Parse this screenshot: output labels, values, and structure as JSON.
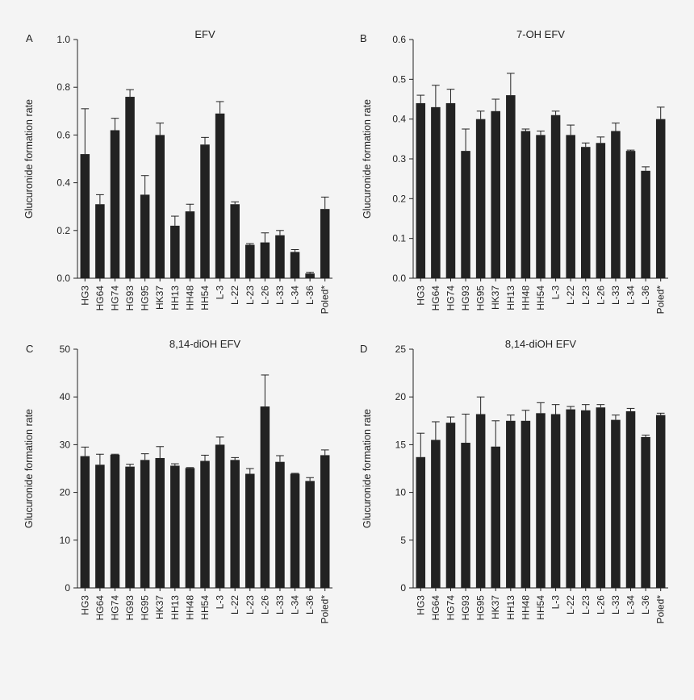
{
  "figure": {
    "background": "#f4f4f4",
    "bar_color": "#222222"
  },
  "chart_data": [
    {
      "type": "bar",
      "letter": "A",
      "title": "EFV",
      "ylabel": "Glucuronide formation rate",
      "ylim": [
        0,
        1.0
      ],
      "yticks": [
        "0.0",
        "0.2",
        "0.4",
        "0.6",
        "0.8",
        "1.0"
      ],
      "categories": [
        "HG3",
        "HG64",
        "HG74",
        "HG93",
        "HG95",
        "HK37",
        "HH13",
        "HH48",
        "HH54",
        "L-3",
        "L-22",
        "L-23",
        "L-26",
        "L-33",
        "L-34",
        "L-36",
        "Poled*"
      ],
      "values": [
        0.52,
        0.31,
        0.62,
        0.76,
        0.35,
        0.6,
        0.22,
        0.28,
        0.56,
        0.69,
        0.31,
        0.14,
        0.15,
        0.18,
        0.11,
        0.02,
        0.29
      ],
      "errors": [
        0.19,
        0.04,
        0.05,
        0.03,
        0.08,
        0.05,
        0.04,
        0.03,
        0.03,
        0.05,
        0.01,
        0.005,
        0.04,
        0.02,
        0.01,
        0.005,
        0.05
      ]
    },
    {
      "type": "bar",
      "letter": "B",
      "title": "7-OH EFV",
      "ylabel": "Glucuronide formation rate",
      "ylim": [
        0,
        0.6
      ],
      "yticks": [
        "0.0",
        "0.1",
        "0.2",
        "0.3",
        "0.4",
        "0.5",
        "0.6"
      ],
      "categories": [
        "HG3",
        "HG64",
        "HG74",
        "HG93",
        "HG95",
        "HK37",
        "HH13",
        "HH48",
        "HH54",
        "L-3",
        "L-22",
        "L-23",
        "L-26",
        "L-33",
        "L-34",
        "L-36",
        "Poled*"
      ],
      "values": [
        0.44,
        0.43,
        0.44,
        0.32,
        0.4,
        0.42,
        0.46,
        0.37,
        0.36,
        0.41,
        0.36,
        0.33,
        0.34,
        0.37,
        0.32,
        0.27,
        0.4
      ],
      "errors": [
        0.02,
        0.055,
        0.035,
        0.055,
        0.02,
        0.03,
        0.055,
        0.005,
        0.01,
        0.01,
        0.025,
        0.01,
        0.015,
        0.02,
        0.002,
        0.01,
        0.03
      ]
    },
    {
      "type": "bar",
      "letter": "C",
      "title": "8,14-diOH EFV",
      "ylabel": "Glucuronide formation rate",
      "ylim": [
        0,
        50
      ],
      "yticks": [
        "0",
        "10",
        "20",
        "30",
        "40",
        "50"
      ],
      "categories": [
        "HG3",
        "HG64",
        "HG74",
        "HG93",
        "HG95",
        "HK37",
        "HH13",
        "HH48",
        "HH54",
        "L-3",
        "L-22",
        "L-23",
        "L-26",
        "L-33",
        "L-34",
        "L-36",
        "Poled*"
      ],
      "values": [
        27.6,
        25.8,
        27.9,
        25.4,
        26.8,
        27.2,
        25.6,
        25.1,
        26.6,
        30.0,
        26.8,
        23.9,
        38.0,
        26.4,
        23.9,
        22.4,
        27.8
      ],
      "errors": [
        1.9,
        2.2,
        0.1,
        0.5,
        1.3,
        2.4,
        0.4,
        0.1,
        1.2,
        1.6,
        0.5,
        1.1,
        6.6,
        1.3,
        0.1,
        0.7,
        1.1
      ]
    },
    {
      "type": "bar",
      "letter": "D",
      "title": "8,14-diOH EFV",
      "ylabel": "Glucuronide formation rate",
      "ylim": [
        0,
        25
      ],
      "yticks": [
        "0",
        "5",
        "10",
        "15",
        "20",
        "25"
      ],
      "categories": [
        "HG3",
        "HG64",
        "HG74",
        "HG93",
        "HG95",
        "HK37",
        "HH13",
        "HH48",
        "HH54",
        "L-3",
        "L-22",
        "L-23",
        "L-26",
        "L-33",
        "L-34",
        "L-36",
        "Poled*"
      ],
      "values": [
        13.7,
        15.5,
        17.3,
        15.2,
        18.2,
        14.8,
        17.5,
        17.5,
        18.3,
        18.2,
        18.7,
        18.6,
        18.9,
        17.6,
        18.5,
        15.8,
        18.1
      ],
      "errors": [
        2.5,
        1.9,
        0.6,
        3.0,
        1.8,
        2.7,
        0.6,
        1.1,
        1.1,
        1.0,
        0.3,
        0.6,
        0.3,
        0.5,
        0.3,
        0.2,
        0.2
      ]
    }
  ]
}
